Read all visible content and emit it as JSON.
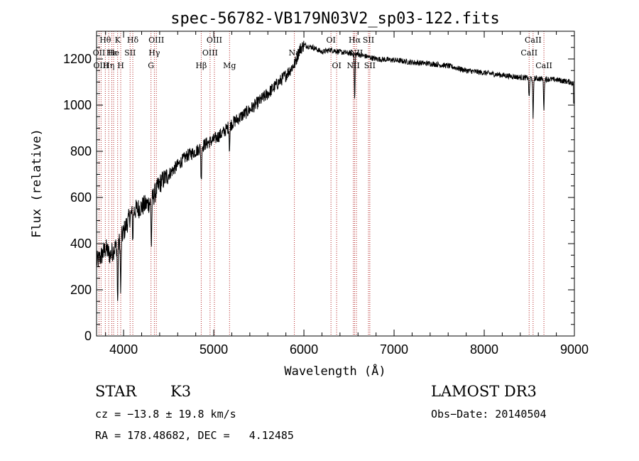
{
  "chart_data": {
    "type": "line",
    "title": "spec-56782-VB179N03V2_sp03-122.fits",
    "xlabel": "Wavelength (Å)",
    "ylabel": "Flux (relative)",
    "xlim": [
      3700,
      9000
    ],
    "ylim": [
      0,
      1320
    ],
    "x_ticks": [
      4000,
      5000,
      6000,
      7000,
      8000,
      9000
    ],
    "y_ticks": [
      0,
      200,
      400,
      600,
      800,
      1000,
      1200
    ],
    "continuum_points": [
      [
        3700,
        320
      ],
      [
        3760,
        350
      ],
      [
        3800,
        380
      ],
      [
        3850,
        350
      ],
      [
        3900,
        380
      ],
      [
        3960,
        410
      ],
      [
        4000,
        450
      ],
      [
        4050,
        500
      ],
      [
        4100,
        540
      ],
      [
        4200,
        560
      ],
      [
        4300,
        580
      ],
      [
        4400,
        660
      ],
      [
        4500,
        700
      ],
      [
        4600,
        740
      ],
      [
        4700,
        780
      ],
      [
        4800,
        800
      ],
      [
        4900,
        830
      ],
      [
        5000,
        850
      ],
      [
        5100,
        880
      ],
      [
        5200,
        920
      ],
      [
        5400,
        980
      ],
      [
        5600,
        1050
      ],
      [
        5800,
        1130
      ],
      [
        5900,
        1180
      ],
      [
        5950,
        1240
      ],
      [
        6000,
        1260
      ],
      [
        6100,
        1250
      ],
      [
        6200,
        1230
      ],
      [
        6300,
        1240
      ],
      [
        6400,
        1230
      ],
      [
        6500,
        1225
      ],
      [
        6600,
        1220
      ],
      [
        6700,
        1210
      ],
      [
        6800,
        1200
      ],
      [
        7000,
        1195
      ],
      [
        7200,
        1185
      ],
      [
        7400,
        1180
      ],
      [
        7600,
        1170
      ],
      [
        7800,
        1150
      ],
      [
        8000,
        1140
      ],
      [
        8200,
        1130
      ],
      [
        8400,
        1120
      ],
      [
        8600,
        1115
      ],
      [
        8800,
        1110
      ],
      [
        8950,
        1100
      ],
      [
        9000,
        1090
      ]
    ],
    "absorption_features": [
      {
        "wave": 3934,
        "depth": 260
      },
      {
        "wave": 3968,
        "depth": 230
      },
      {
        "wave": 4102,
        "depth": 120
      },
      {
        "wave": 4308,
        "depth": 200
      },
      {
        "wave": 4861,
        "depth": 150
      },
      {
        "wave": 5175,
        "depth": 100
      },
      {
        "wave": 6563,
        "depth": 200
      },
      {
        "wave": 8498,
        "depth": 90
      },
      {
        "wave": 8542,
        "depth": 180
      },
      {
        "wave": 8662,
        "depth": 130
      }
    ],
    "line_markers": [
      {
        "wave": 3727,
        "label": "OII",
        "row": 2
      },
      {
        "wave": 3750,
        "label": "OIII",
        "row": 3
      },
      {
        "wave": 3797,
        "label": "Hθ",
        "row": 1
      },
      {
        "wave": 3835,
        "label": "Hη",
        "row": 3
      },
      {
        "wave": 3869,
        "label": "Hε",
        "row": 2
      },
      {
        "wave": 3889,
        "label": "He",
        "row": 2
      },
      {
        "wave": 3934,
        "label": "K",
        "row": 1
      },
      {
        "wave": 3968,
        "label": "H",
        "row": 3
      },
      {
        "wave": 4072,
        "label": "SII",
        "row": 2
      },
      {
        "wave": 4102,
        "label": "Hδ",
        "row": 1
      },
      {
        "wave": 4304,
        "label": "G",
        "row": 3
      },
      {
        "wave": 4341,
        "label": "Hγ",
        "row": 2
      },
      {
        "wave": 4363,
        "label": "OIII",
        "row": 1
      },
      {
        "wave": 4861,
        "label": "Hβ",
        "row": 3
      },
      {
        "wave": 4959,
        "label": "OIII",
        "row": 2
      },
      {
        "wave": 5007,
        "label": "OIII",
        "row": 1
      },
      {
        "wave": 5175,
        "label": "Mg",
        "row": 3
      },
      {
        "wave": 5894,
        "label": "Na",
        "row": 2
      },
      {
        "wave": 6300,
        "label": "OI",
        "row": 1
      },
      {
        "wave": 6363,
        "label": "OI",
        "row": 3
      },
      {
        "wave": 6548,
        "label": "NII",
        "row": 3
      },
      {
        "wave": 6563,
        "label": "Hα",
        "row": 1
      },
      {
        "wave": 6583,
        "label": "NII",
        "row": 2
      },
      {
        "wave": 6716,
        "label": "SII",
        "row": 1
      },
      {
        "wave": 6731,
        "label": "SII",
        "row": 3
      },
      {
        "wave": 8498,
        "label": "CaII",
        "row": 2
      },
      {
        "wave": 8542,
        "label": "CaII",
        "row": 1
      },
      {
        "wave": 8662,
        "label": "CaII",
        "row": 3
      }
    ]
  },
  "info": {
    "object_class": "STAR",
    "subclass": "K3",
    "survey": "LAMOST DR3",
    "redshift": "cz = −13.8 ± 19.8 km/s",
    "obs_date": "Obs−Date: 20140504",
    "coords": "RA = 178.48682, DEC =   4.12485"
  }
}
